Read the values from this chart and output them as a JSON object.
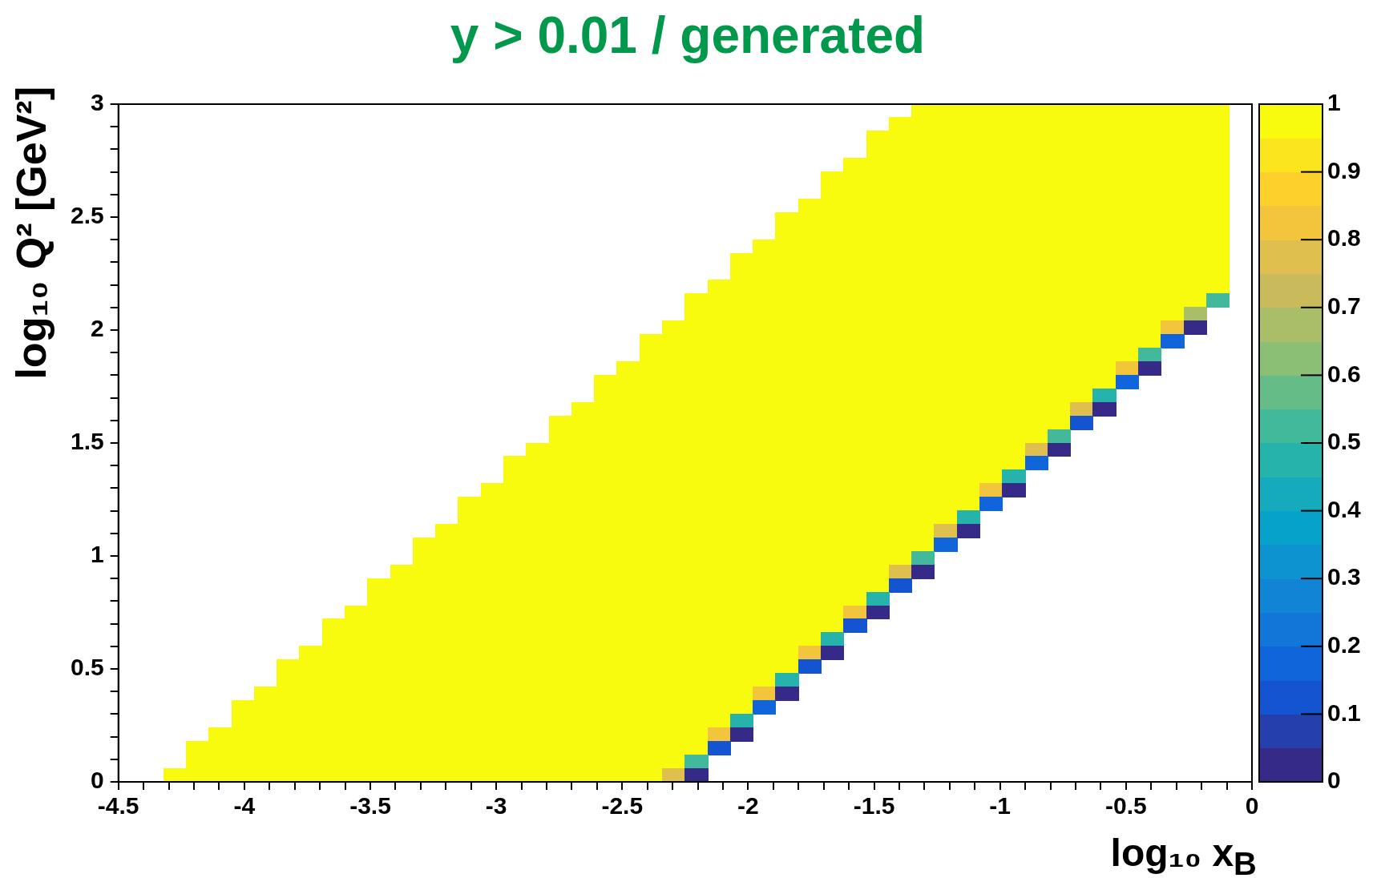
{
  "chart_data": {
    "type": "heatmap",
    "title": "y > 0.01 / generated",
    "xlabel": "log₁₀ x$_{B}$",
    "ylabel": "log₁₀ Q² [GeV²]",
    "xlim": [
      -4.5,
      0
    ],
    "ylim": [
      0,
      3
    ],
    "clim": [
      0,
      1
    ],
    "xticks": [
      -4.5,
      {
        "value": -4.4,
        "label": null
      },
      {
        "value": -4.3,
        "label": null
      },
      {
        "value": -4.2,
        "label": null
      },
      {
        "value": -4.1,
        "label": null
      },
      -4,
      {
        "value": -3.9,
        "label": null
      },
      {
        "value": -3.8,
        "label": null
      },
      {
        "value": -3.7,
        "label": null
      },
      {
        "value": -3.6,
        "label": null
      },
      -3.5,
      {
        "value": -3.4,
        "label": null
      },
      {
        "value": -3.3,
        "label": null
      },
      {
        "value": -3.2,
        "label": null
      },
      {
        "value": -3.1,
        "label": null
      },
      -3,
      {
        "value": -2.9,
        "label": null
      },
      {
        "value": -2.8,
        "label": null
      },
      {
        "value": -2.7,
        "label": null
      },
      {
        "value": -2.6,
        "label": null
      },
      -2.5,
      {
        "value": -2.4,
        "label": null
      },
      {
        "value": -2.3,
        "label": null
      },
      {
        "value": -2.2,
        "label": null
      },
      {
        "value": -2.1,
        "label": null
      },
      -2,
      {
        "value": -1.9,
        "label": null
      },
      {
        "value": -1.8,
        "label": null
      },
      {
        "value": -1.7,
        "label": null
      },
      {
        "value": -1.6,
        "label": null
      },
      -1.5,
      {
        "value": -1.4,
        "label": null
      },
      {
        "value": -1.3,
        "label": null
      },
      {
        "value": -1.2,
        "label": null
      },
      {
        "value": -1.1,
        "label": null
      },
      -1,
      {
        "value": -0.9,
        "label": null
      },
      {
        "value": -0.8,
        "label": null
      },
      {
        "value": -0.7,
        "label": null
      },
      {
        "value": -0.6,
        "label": null
      },
      -0.5,
      {
        "value": -0.4,
        "label": null
      },
      {
        "value": -0.3,
        "label": null
      },
      {
        "value": -0.2,
        "label": null
      },
      {
        "value": -0.1,
        "label": null
      },
      0
    ],
    "yticks": [
      0,
      {
        "value": 0.1,
        "label": null
      },
      {
        "value": 0.2,
        "label": null
      },
      {
        "value": 0.3,
        "label": null
      },
      {
        "value": 0.4,
        "label": null
      },
      0.5,
      {
        "value": 0.6,
        "label": null
      },
      {
        "value": 0.7,
        "label": null
      },
      {
        "value": 0.8,
        "label": null
      },
      {
        "value": 0.9,
        "label": null
      },
      1,
      {
        "value": 1.1,
        "label": null
      },
      {
        "value": 1.2,
        "label": null
      },
      {
        "value": 1.3,
        "label": null
      },
      {
        "value": 1.4,
        "label": null
      },
      1.5,
      {
        "value": 1.6,
        "label": null
      },
      {
        "value": 1.7,
        "label": null
      },
      {
        "value": 1.8,
        "label": null
      },
      {
        "value": 1.9,
        "label": null
      },
      2,
      {
        "value": 2.1,
        "label": null
      },
      {
        "value": 2.2,
        "label": null
      },
      {
        "value": 2.3,
        "label": null
      },
      {
        "value": 2.4,
        "label": null
      },
      2.5,
      {
        "value": 2.6,
        "label": null
      },
      {
        "value": 2.7,
        "label": null
      },
      {
        "value": 2.8,
        "label": null
      },
      {
        "value": 2.9,
        "label": null
      },
      3
    ],
    "cticks": [
      0,
      0.1,
      0.2,
      0.3,
      0.4,
      0.5,
      0.6,
      0.7,
      0.8,
      0.9,
      1
    ],
    "cells": [
      [
        null,
        null,
        null,
        null,
        null,
        null,
        null,
        null,
        null,
        null,
        null,
        null,
        null,
        null,
        null,
        null,
        null,
        null,
        null,
        null,
        null,
        null,
        null,
        null,
        null,
        null,
        null,
        null,
        null,
        null,
        null,
        null,
        null,
        null,
        null,
        1,
        1,
        1,
        1,
        1,
        1,
        1,
        1,
        1,
        1,
        1,
        1,
        1,
        1,
        null
      ],
      [
        null,
        null,
        null,
        null,
        null,
        null,
        null,
        null,
        null,
        null,
        null,
        null,
        null,
        null,
        null,
        null,
        null,
        null,
        null,
        null,
        null,
        null,
        null,
        null,
        null,
        null,
        null,
        null,
        null,
        null,
        null,
        null,
        null,
        null,
        1,
        1,
        1,
        1,
        1,
        1,
        1,
        1,
        1,
        1,
        1,
        1,
        1,
        1,
        1,
        null
      ],
      [
        null,
        null,
        null,
        null,
        null,
        null,
        null,
        null,
        null,
        null,
        null,
        null,
        null,
        null,
        null,
        null,
        null,
        null,
        null,
        null,
        null,
        null,
        null,
        null,
        null,
        null,
        null,
        null,
        null,
        null,
        null,
        null,
        null,
        1,
        1,
        1,
        1,
        1,
        1,
        1,
        1,
        1,
        1,
        1,
        1,
        1,
        1,
        1,
        1,
        null
      ],
      [
        null,
        null,
        null,
        null,
        null,
        null,
        null,
        null,
        null,
        null,
        null,
        null,
        null,
        null,
        null,
        null,
        null,
        null,
        null,
        null,
        null,
        null,
        null,
        null,
        null,
        null,
        null,
        null,
        null,
        null,
        null,
        null,
        null,
        1,
        1,
        1,
        1,
        1,
        1,
        1,
        1,
        1,
        1,
        1,
        1,
        1,
        1,
        1,
        1,
        null
      ],
      [
        null,
        null,
        null,
        null,
        null,
        null,
        null,
        null,
        null,
        null,
        null,
        null,
        null,
        null,
        null,
        null,
        null,
        null,
        null,
        null,
        null,
        null,
        null,
        null,
        null,
        null,
        null,
        null,
        null,
        null,
        null,
        null,
        1,
        1,
        1,
        1,
        1,
        1,
        1,
        1,
        1,
        1,
        1,
        1,
        1,
        1,
        1,
        1,
        1,
        null
      ],
      [
        null,
        null,
        null,
        null,
        null,
        null,
        null,
        null,
        null,
        null,
        null,
        null,
        null,
        null,
        null,
        null,
        null,
        null,
        null,
        null,
        null,
        null,
        null,
        null,
        null,
        null,
        null,
        null,
        null,
        null,
        null,
        1,
        1,
        1,
        1,
        1,
        1,
        1,
        1,
        1,
        1,
        1,
        1,
        1,
        1,
        1,
        1,
        1,
        1,
        null
      ],
      [
        null,
        null,
        null,
        null,
        null,
        null,
        null,
        null,
        null,
        null,
        null,
        null,
        null,
        null,
        null,
        null,
        null,
        null,
        null,
        null,
        null,
        null,
        null,
        null,
        null,
        null,
        null,
        null,
        null,
        null,
        null,
        1,
        1,
        1,
        1,
        1,
        1,
        1,
        1,
        1,
        1,
        1,
        1,
        1,
        1,
        1,
        1,
        1,
        1,
        null
      ],
      [
        null,
        null,
        null,
        null,
        null,
        null,
        null,
        null,
        null,
        null,
        null,
        null,
        null,
        null,
        null,
        null,
        null,
        null,
        null,
        null,
        null,
        null,
        null,
        null,
        null,
        null,
        null,
        null,
        null,
        null,
        1,
        1,
        1,
        1,
        1,
        1,
        1,
        1,
        1,
        1,
        1,
        1,
        1,
        1,
        1,
        1,
        1,
        1,
        1,
        null
      ],
      [
        null,
        null,
        null,
        null,
        null,
        null,
        null,
        null,
        null,
        null,
        null,
        null,
        null,
        null,
        null,
        null,
        null,
        null,
        null,
        null,
        null,
        null,
        null,
        null,
        null,
        null,
        null,
        null,
        null,
        1,
        1,
        1,
        1,
        1,
        1,
        1,
        1,
        1,
        1,
        1,
        1,
        1,
        1,
        1,
        1,
        1,
        1,
        1,
        1,
        null
      ],
      [
        null,
        null,
        null,
        null,
        null,
        null,
        null,
        null,
        null,
        null,
        null,
        null,
        null,
        null,
        null,
        null,
        null,
        null,
        null,
        null,
        null,
        null,
        null,
        null,
        null,
        null,
        null,
        null,
        null,
        1,
        1,
        1,
        1,
        1,
        1,
        1,
        1,
        1,
        1,
        1,
        1,
        1,
        1,
        1,
        1,
        1,
        1,
        1,
        1,
        null
      ],
      [
        null,
        null,
        null,
        null,
        null,
        null,
        null,
        null,
        null,
        null,
        null,
        null,
        null,
        null,
        null,
        null,
        null,
        null,
        null,
        null,
        null,
        null,
        null,
        null,
        null,
        null,
        null,
        null,
        1,
        1,
        1,
        1,
        1,
        1,
        1,
        1,
        1,
        1,
        1,
        1,
        1,
        1,
        1,
        1,
        1,
        1,
        1,
        1,
        1,
        null
      ],
      [
        null,
        null,
        null,
        null,
        null,
        null,
        null,
        null,
        null,
        null,
        null,
        null,
        null,
        null,
        null,
        null,
        null,
        null,
        null,
        null,
        null,
        null,
        null,
        null,
        null,
        null,
        null,
        1,
        1,
        1,
        1,
        1,
        1,
        1,
        1,
        1,
        1,
        1,
        1,
        1,
        1,
        1,
        1,
        1,
        1,
        1,
        1,
        1,
        1,
        null
      ],
      [
        null,
        null,
        null,
        null,
        null,
        null,
        null,
        null,
        null,
        null,
        null,
        null,
        null,
        null,
        null,
        null,
        null,
        null,
        null,
        null,
        null,
        null,
        null,
        null,
        null,
        null,
        null,
        1,
        1,
        1,
        1,
        1,
        1,
        1,
        1,
        1,
        1,
        1,
        1,
        1,
        1,
        1,
        1,
        1,
        1,
        1,
        1,
        1,
        1,
        null
      ],
      [
        null,
        null,
        null,
        null,
        null,
        null,
        null,
        null,
        null,
        null,
        null,
        null,
        null,
        null,
        null,
        null,
        null,
        null,
        null,
        null,
        null,
        null,
        null,
        null,
        null,
        null,
        1,
        1,
        1,
        1,
        1,
        1,
        1,
        1,
        1,
        1,
        1,
        1,
        1,
        1,
        1,
        1,
        1,
        1,
        1,
        1,
        1,
        1,
        1,
        null
      ],
      [
        null,
        null,
        null,
        null,
        null,
        null,
        null,
        null,
        null,
        null,
        null,
        null,
        null,
        null,
        null,
        null,
        null,
        null,
        null,
        null,
        null,
        null,
        null,
        null,
        null,
        1,
        1,
        1,
        1,
        1,
        1,
        1,
        1,
        1,
        1,
        1,
        1,
        1,
        1,
        1,
        1,
        1,
        1,
        1,
        1,
        1,
        1,
        1,
        0.52,
        null
      ],
      [
        null,
        null,
        null,
        null,
        null,
        null,
        null,
        null,
        null,
        null,
        null,
        null,
        null,
        null,
        null,
        null,
        null,
        null,
        null,
        null,
        null,
        null,
        null,
        null,
        null,
        1,
        1,
        1,
        1,
        1,
        1,
        1,
        1,
        1,
        1,
        1,
        1,
        1,
        1,
        1,
        1,
        1,
        1,
        1,
        1,
        1,
        1,
        0.67,
        null,
        null
      ],
      [
        null,
        null,
        null,
        null,
        null,
        null,
        null,
        null,
        null,
        null,
        null,
        null,
        null,
        null,
        null,
        null,
        null,
        null,
        null,
        null,
        null,
        null,
        null,
        null,
        1,
        1,
        1,
        1,
        1,
        1,
        1,
        1,
        1,
        1,
        1,
        1,
        1,
        1,
        1,
        1,
        1,
        1,
        1,
        1,
        1,
        1,
        0.82,
        0.02,
        null,
        null
      ],
      [
        null,
        null,
        null,
        null,
        null,
        null,
        null,
        null,
        null,
        null,
        null,
        null,
        null,
        null,
        null,
        null,
        null,
        null,
        null,
        null,
        null,
        null,
        null,
        1,
        1,
        1,
        1,
        1,
        1,
        1,
        1,
        1,
        1,
        1,
        1,
        1,
        1,
        1,
        1,
        1,
        1,
        1,
        1,
        1,
        1,
        1,
        0.17,
        null,
        null,
        null
      ],
      [
        null,
        null,
        null,
        null,
        null,
        null,
        null,
        null,
        null,
        null,
        null,
        null,
        null,
        null,
        null,
        null,
        null,
        null,
        null,
        null,
        null,
        null,
        null,
        1,
        1,
        1,
        1,
        1,
        1,
        1,
        1,
        1,
        1,
        1,
        1,
        1,
        1,
        1,
        1,
        1,
        1,
        1,
        1,
        1,
        1,
        0.52,
        null,
        null,
        null,
        null
      ],
      [
        null,
        null,
        null,
        null,
        null,
        null,
        null,
        null,
        null,
        null,
        null,
        null,
        null,
        null,
        null,
        null,
        null,
        null,
        null,
        null,
        null,
        null,
        1,
        1,
        1,
        1,
        1,
        1,
        1,
        1,
        1,
        1,
        1,
        1,
        1,
        1,
        1,
        1,
        1,
        1,
        1,
        1,
        1,
        1,
        0.82,
        0.02,
        null,
        null,
        null,
        null
      ],
      [
        null,
        null,
        null,
        null,
        null,
        null,
        null,
        null,
        null,
        null,
        null,
        null,
        null,
        null,
        null,
        null,
        null,
        null,
        null,
        null,
        null,
        1,
        1,
        1,
        1,
        1,
        1,
        1,
        1,
        1,
        1,
        1,
        1,
        1,
        1,
        1,
        1,
        1,
        1,
        1,
        1,
        1,
        1,
        1,
        0.17,
        null,
        null,
        null,
        null,
        null
      ],
      [
        null,
        null,
        null,
        null,
        null,
        null,
        null,
        null,
        null,
        null,
        null,
        null,
        null,
        null,
        null,
        null,
        null,
        null,
        null,
        null,
        null,
        1,
        1,
        1,
        1,
        1,
        1,
        1,
        1,
        1,
        1,
        1,
        1,
        1,
        1,
        1,
        1,
        1,
        1,
        1,
        1,
        1,
        1,
        0.47,
        null,
        null,
        null,
        null,
        null,
        null
      ],
      [
        null,
        null,
        null,
        null,
        null,
        null,
        null,
        null,
        null,
        null,
        null,
        null,
        null,
        null,
        null,
        null,
        null,
        null,
        null,
        null,
        1,
        1,
        1,
        1,
        1,
        1,
        1,
        1,
        1,
        1,
        1,
        1,
        1,
        1,
        1,
        1,
        1,
        1,
        1,
        1,
        1,
        1,
        0.77,
        0.02,
        null,
        null,
        null,
        null,
        null,
        null
      ],
      [
        null,
        null,
        null,
        null,
        null,
        null,
        null,
        null,
        null,
        null,
        null,
        null,
        null,
        null,
        null,
        null,
        null,
        null,
        null,
        1,
        1,
        1,
        1,
        1,
        1,
        1,
        1,
        1,
        1,
        1,
        1,
        1,
        1,
        1,
        1,
        1,
        1,
        1,
        1,
        1,
        1,
        1,
        0.12,
        null,
        null,
        null,
        null,
        null,
        null,
        null
      ],
      [
        null,
        null,
        null,
        null,
        null,
        null,
        null,
        null,
        null,
        null,
        null,
        null,
        null,
        null,
        null,
        null,
        null,
        null,
        null,
        1,
        1,
        1,
        1,
        1,
        1,
        1,
        1,
        1,
        1,
        1,
        1,
        1,
        1,
        1,
        1,
        1,
        1,
        1,
        1,
        1,
        1,
        0.52,
        null,
        null,
        null,
        null,
        null,
        null,
        null,
        null
      ],
      [
        null,
        null,
        null,
        null,
        null,
        null,
        null,
        null,
        null,
        null,
        null,
        null,
        null,
        null,
        null,
        null,
        null,
        null,
        1,
        1,
        1,
        1,
        1,
        1,
        1,
        1,
        1,
        1,
        1,
        1,
        1,
        1,
        1,
        1,
        1,
        1,
        1,
        1,
        1,
        1,
        0.77,
        0.02,
        null,
        null,
        null,
        null,
        null,
        null,
        null,
        null
      ],
      [
        null,
        null,
        null,
        null,
        null,
        null,
        null,
        null,
        null,
        null,
        null,
        null,
        null,
        null,
        null,
        null,
        null,
        1,
        1,
        1,
        1,
        1,
        1,
        1,
        1,
        1,
        1,
        1,
        1,
        1,
        1,
        1,
        1,
        1,
        1,
        1,
        1,
        1,
        1,
        1,
        0.17,
        null,
        null,
        null,
        null,
        null,
        null,
        null,
        null,
        null
      ],
      [
        null,
        null,
        null,
        null,
        null,
        null,
        null,
        null,
        null,
        null,
        null,
        null,
        null,
        null,
        null,
        null,
        null,
        1,
        1,
        1,
        1,
        1,
        1,
        1,
        1,
        1,
        1,
        1,
        1,
        1,
        1,
        1,
        1,
        1,
        1,
        1,
        1,
        1,
        1,
        0.47,
        null,
        null,
        null,
        null,
        null,
        null,
        null,
        null,
        null,
        null
      ],
      [
        null,
        null,
        null,
        null,
        null,
        null,
        null,
        null,
        null,
        null,
        null,
        null,
        null,
        null,
        null,
        null,
        1,
        1,
        1,
        1,
        1,
        1,
        1,
        1,
        1,
        1,
        1,
        1,
        1,
        1,
        1,
        1,
        1,
        1,
        1,
        1,
        1,
        1,
        0.82,
        0.02,
        null,
        null,
        null,
        null,
        null,
        null,
        null,
        null,
        null,
        null
      ],
      [
        null,
        null,
        null,
        null,
        null,
        null,
        null,
        null,
        null,
        null,
        null,
        null,
        null,
        null,
        null,
        1,
        1,
        1,
        1,
        1,
        1,
        1,
        1,
        1,
        1,
        1,
        1,
        1,
        1,
        1,
        1,
        1,
        1,
        1,
        1,
        1,
        1,
        1,
        0.17,
        null,
        null,
        null,
        null,
        null,
        null,
        null,
        null,
        null,
        null,
        null
      ],
      [
        null,
        null,
        null,
        null,
        null,
        null,
        null,
        null,
        null,
        null,
        null,
        null,
        null,
        null,
        null,
        1,
        1,
        1,
        1,
        1,
        1,
        1,
        1,
        1,
        1,
        1,
        1,
        1,
        1,
        1,
        1,
        1,
        1,
        1,
        1,
        1,
        1,
        0.47,
        null,
        null,
        null,
        null,
        null,
        null,
        null,
        null,
        null,
        null,
        null,
        null
      ],
      [
        null,
        null,
        null,
        null,
        null,
        null,
        null,
        null,
        null,
        null,
        null,
        null,
        null,
        null,
        1,
        1,
        1,
        1,
        1,
        1,
        1,
        1,
        1,
        1,
        1,
        1,
        1,
        1,
        1,
        1,
        1,
        1,
        1,
        1,
        1,
        1,
        0.77,
        0.02,
        null,
        null,
        null,
        null,
        null,
        null,
        null,
        null,
        null,
        null,
        null,
        null
      ],
      [
        null,
        null,
        null,
        null,
        null,
        null,
        null,
        null,
        null,
        null,
        null,
        null,
        null,
        1,
        1,
        1,
        1,
        1,
        1,
        1,
        1,
        1,
        1,
        1,
        1,
        1,
        1,
        1,
        1,
        1,
        1,
        1,
        1,
        1,
        1,
        1,
        0.17,
        null,
        null,
        null,
        null,
        null,
        null,
        null,
        null,
        null,
        null,
        null,
        null,
        null
      ],
      [
        null,
        null,
        null,
        null,
        null,
        null,
        null,
        null,
        null,
        null,
        null,
        null,
        null,
        1,
        1,
        1,
        1,
        1,
        1,
        1,
        1,
        1,
        1,
        1,
        1,
        1,
        1,
        1,
        1,
        1,
        1,
        1,
        1,
        1,
        1,
        0.52,
        null,
        null,
        null,
        null,
        null,
        null,
        null,
        null,
        null,
        null,
        null,
        null,
        null,
        null
      ],
      [
        null,
        null,
        null,
        null,
        null,
        null,
        null,
        null,
        null,
        null,
        null,
        null,
        1,
        1,
        1,
        1,
        1,
        1,
        1,
        1,
        1,
        1,
        1,
        1,
        1,
        1,
        1,
        1,
        1,
        1,
        1,
        1,
        1,
        1,
        0.77,
        0.02,
        null,
        null,
        null,
        null,
        null,
        null,
        null,
        null,
        null,
        null,
        null,
        null,
        null,
        null
      ],
      [
        null,
        null,
        null,
        null,
        null,
        null,
        null,
        null,
        null,
        null,
        null,
        1,
        1,
        1,
        1,
        1,
        1,
        1,
        1,
        1,
        1,
        1,
        1,
        1,
        1,
        1,
        1,
        1,
        1,
        1,
        1,
        1,
        1,
        1,
        0.12,
        null,
        null,
        null,
        null,
        null,
        null,
        null,
        null,
        null,
        null,
        null,
        null,
        null,
        null,
        null
      ],
      [
        null,
        null,
        null,
        null,
        null,
        null,
        null,
        null,
        null,
        null,
        null,
        1,
        1,
        1,
        1,
        1,
        1,
        1,
        1,
        1,
        1,
        1,
        1,
        1,
        1,
        1,
        1,
        1,
        1,
        1,
        1,
        1,
        1,
        0.47,
        null,
        null,
        null,
        null,
        null,
        null,
        null,
        null,
        null,
        null,
        null,
        null,
        null,
        null,
        null,
        null
      ],
      [
        null,
        null,
        null,
        null,
        null,
        null,
        null,
        null,
        null,
        null,
        1,
        1,
        1,
        1,
        1,
        1,
        1,
        1,
        1,
        1,
        1,
        1,
        1,
        1,
        1,
        1,
        1,
        1,
        1,
        1,
        1,
        1,
        0.82,
        0.02,
        null,
        null,
        null,
        null,
        null,
        null,
        null,
        null,
        null,
        null,
        null,
        null,
        null,
        null,
        null,
        null
      ],
      [
        null,
        null,
        null,
        null,
        null,
        null,
        null,
        null,
        null,
        1,
        1,
        1,
        1,
        1,
        1,
        1,
        1,
        1,
        1,
        1,
        1,
        1,
        1,
        1,
        1,
        1,
        1,
        1,
        1,
        1,
        1,
        1,
        0.12,
        null,
        null,
        null,
        null,
        null,
        null,
        null,
        null,
        null,
        null,
        null,
        null,
        null,
        null,
        null,
        null,
        null
      ],
      [
        null,
        null,
        null,
        null,
        null,
        null,
        null,
        null,
        null,
        1,
        1,
        1,
        1,
        1,
        1,
        1,
        1,
        1,
        1,
        1,
        1,
        1,
        1,
        1,
        1,
        1,
        1,
        1,
        1,
        1,
        1,
        0.47,
        null,
        null,
        null,
        null,
        null,
        null,
        null,
        null,
        null,
        null,
        null,
        null,
        null,
        null,
        null,
        null,
        null,
        null
      ],
      [
        null,
        null,
        null,
        null,
        null,
        null,
        null,
        null,
        1,
        1,
        1,
        1,
        1,
        1,
        1,
        1,
        1,
        1,
        1,
        1,
        1,
        1,
        1,
        1,
        1,
        1,
        1,
        1,
        1,
        1,
        0.82,
        0.02,
        null,
        null,
        null,
        null,
        null,
        null,
        null,
        null,
        null,
        null,
        null,
        null,
        null,
        null,
        null,
        null,
        null,
        null
      ],
      [
        null,
        null,
        null,
        null,
        null,
        null,
        null,
        1,
        1,
        1,
        1,
        1,
        1,
        1,
        1,
        1,
        1,
        1,
        1,
        1,
        1,
        1,
        1,
        1,
        1,
        1,
        1,
        1,
        1,
        1,
        0.12,
        null,
        null,
        null,
        null,
        null,
        null,
        null,
        null,
        null,
        null,
        null,
        null,
        null,
        null,
        null,
        null,
        null,
        null,
        null
      ],
      [
        null,
        null,
        null,
        null,
        null,
        null,
        null,
        1,
        1,
        1,
        1,
        1,
        1,
        1,
        1,
        1,
        1,
        1,
        1,
        1,
        1,
        1,
        1,
        1,
        1,
        1,
        1,
        1,
        1,
        0.47,
        null,
        null,
        null,
        null,
        null,
        null,
        null,
        null,
        null,
        null,
        null,
        null,
        null,
        null,
        null,
        null,
        null,
        null,
        null,
        null
      ],
      [
        null,
        null,
        null,
        null,
        null,
        null,
        1,
        1,
        1,
        1,
        1,
        1,
        1,
        1,
        1,
        1,
        1,
        1,
        1,
        1,
        1,
        1,
        1,
        1,
        1,
        1,
        1,
        1,
        0.82,
        0.02,
        null,
        null,
        null,
        null,
        null,
        null,
        null,
        null,
        null,
        null,
        null,
        null,
        null,
        null,
        null,
        null,
        null,
        null,
        null,
        null
      ],
      [
        null,
        null,
        null,
        null,
        null,
        1,
        1,
        1,
        1,
        1,
        1,
        1,
        1,
        1,
        1,
        1,
        1,
        1,
        1,
        1,
        1,
        1,
        1,
        1,
        1,
        1,
        1,
        1,
        0.17,
        null,
        null,
        null,
        null,
        null,
        null,
        null,
        null,
        null,
        null,
        null,
        null,
        null,
        null,
        null,
        null,
        null,
        null,
        null,
        null,
        null
      ],
      [
        null,
        null,
        null,
        null,
        null,
        1,
        1,
        1,
        1,
        1,
        1,
        1,
        1,
        1,
        1,
        1,
        1,
        1,
        1,
        1,
        1,
        1,
        1,
        1,
        1,
        1,
        1,
        0.47,
        null,
        null,
        null,
        null,
        null,
        null,
        null,
        null,
        null,
        null,
        null,
        null,
        null,
        null,
        null,
        null,
        null,
        null,
        null,
        null,
        null,
        null
      ],
      [
        null,
        null,
        null,
        null,
        1,
        1,
        1,
        1,
        1,
        1,
        1,
        1,
        1,
        1,
        1,
        1,
        1,
        1,
        1,
        1,
        1,
        1,
        1,
        1,
        1,
        1,
        0.82,
        0.02,
        null,
        null,
        null,
        null,
        null,
        null,
        null,
        null,
        null,
        null,
        null,
        null,
        null,
        null,
        null,
        null,
        null,
        null,
        null,
        null,
        null,
        null
      ],
      [
        null,
        null,
        null,
        1,
        1,
        1,
        1,
        1,
        1,
        1,
        1,
        1,
        1,
        1,
        1,
        1,
        1,
        1,
        1,
        1,
        1,
        1,
        1,
        1,
        1,
        1,
        0.12,
        null,
        null,
        null,
        null,
        null,
        null,
        null,
        null,
        null,
        null,
        null,
        null,
        null,
        null,
        null,
        null,
        null,
        null,
        null,
        null,
        null,
        null,
        null
      ],
      [
        null,
        null,
        null,
        1,
        1,
        1,
        1,
        1,
        1,
        1,
        1,
        1,
        1,
        1,
        1,
        1,
        1,
        1,
        1,
        1,
        1,
        1,
        1,
        1,
        1,
        0.52,
        null,
        null,
        null,
        null,
        null,
        null,
        null,
        null,
        null,
        null,
        null,
        null,
        null,
        null,
        null,
        null,
        null,
        null,
        null,
        null,
        null,
        null,
        null,
        null
      ],
      [
        null,
        null,
        1,
        1,
        1,
        1,
        1,
        1,
        1,
        1,
        1,
        1,
        1,
        1,
        1,
        1,
        1,
        1,
        1,
        1,
        1,
        1,
        1,
        1,
        0.77,
        0.02,
        null,
        null,
        null,
        null,
        null,
        null,
        null,
        null,
        null,
        null,
        null,
        null,
        null,
        null,
        null,
        null,
        null,
        null,
        null,
        null,
        null,
        null,
        null,
        null
      ]
    ]
  }
}
